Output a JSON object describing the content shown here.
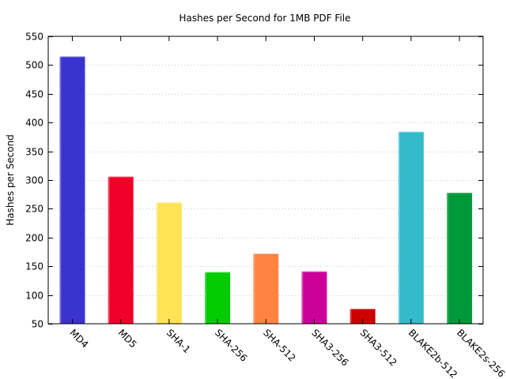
{
  "chart_data": {
    "type": "bar",
    "title": "Hashes per Second for 1MB PDF File",
    "xlabel": "",
    "ylabel": "Hashes per Second",
    "ylim": [
      50,
      550
    ],
    "yticks": [
      50,
      100,
      150,
      200,
      250,
      300,
      350,
      400,
      450,
      500,
      550
    ],
    "grid": true,
    "categories": [
      "MD4",
      "MD5",
      "SHA-1",
      "SHA-256",
      "SHA-512",
      "SHA3-256",
      "SHA3-512",
      "BLAKE2b-512",
      "BLAKE2s-256"
    ],
    "values": [
      515,
      306,
      261,
      140,
      172,
      141,
      76,
      384,
      278
    ],
    "colors": [
      "#3a33d0",
      "#f00029",
      "#ffe354",
      "#00cc00",
      "#ff8442",
      "#cc0099",
      "#cc0000",
      "#33bbcc",
      "#00993a"
    ]
  }
}
